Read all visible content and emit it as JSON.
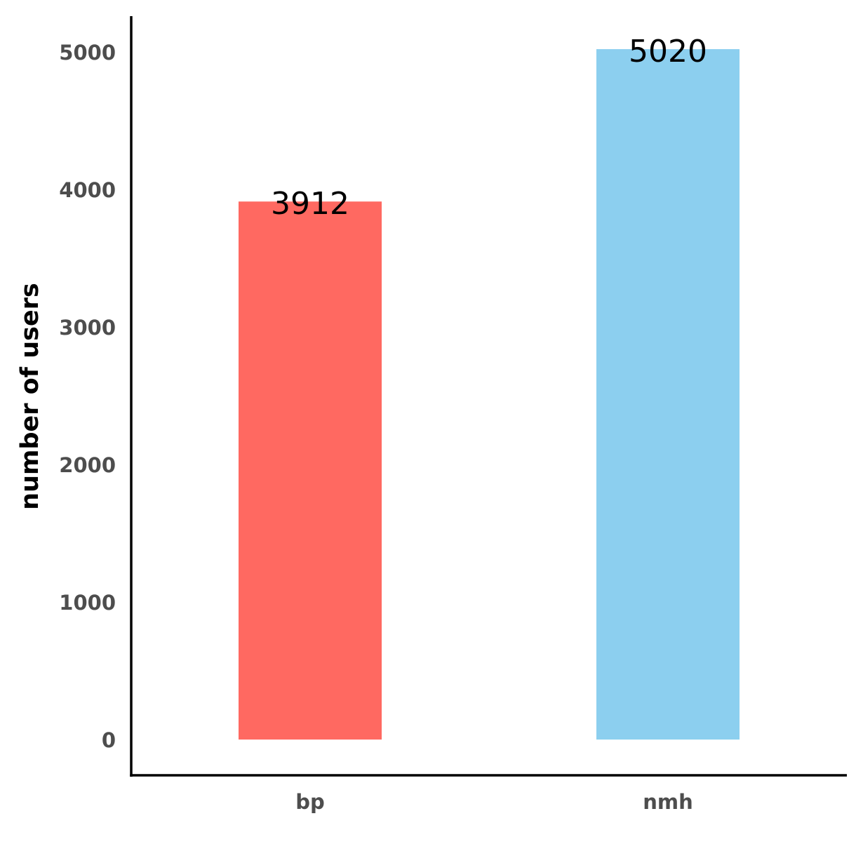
{
  "chart_data": {
    "type": "bar",
    "categories": [
      "bp",
      "nmh"
    ],
    "values": [
      3912,
      5020
    ],
    "value_labels": [
      "3912",
      "5020"
    ],
    "colors": [
      "#ff6961",
      "#8ccfef"
    ],
    "title": "",
    "xlabel": "",
    "ylabel": "number of users",
    "ylim": [
      -260,
      5260
    ],
    "yticks": [
      0,
      1000,
      2000,
      3000,
      4000,
      5000
    ],
    "ytick_labels": [
      "0",
      "1000",
      "2000",
      "3000",
      "4000",
      "5000"
    ],
    "grid": false,
    "legend": "none"
  }
}
